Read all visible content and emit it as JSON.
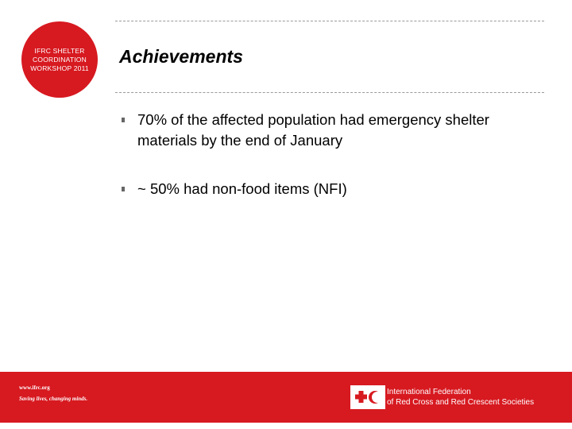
{
  "badge": {
    "lines": [
      "IFRC SHELTER",
      "COORDINATION",
      "WORKSHOP 2011"
    ]
  },
  "slide": {
    "title": "Achievements",
    "bullets": [
      "70% of the affected population had emergency shelter materials by the end of January",
      "~ 50% had non-food items (NFI)"
    ]
  },
  "footer": {
    "url": "www.ifrc.org",
    "tagline": "Saving lives, changing minds.",
    "org_name_lines": [
      "International Federation",
      "of Red Cross and Red Crescent Societies"
    ]
  },
  "colors": {
    "brand_red": "#d71920",
    "rule": "#9a9a9a",
    "text": "#000000"
  },
  "icons": {
    "bullet": "square-bullet-icon",
    "emblem": "red-cross-red-crescent-icon"
  }
}
